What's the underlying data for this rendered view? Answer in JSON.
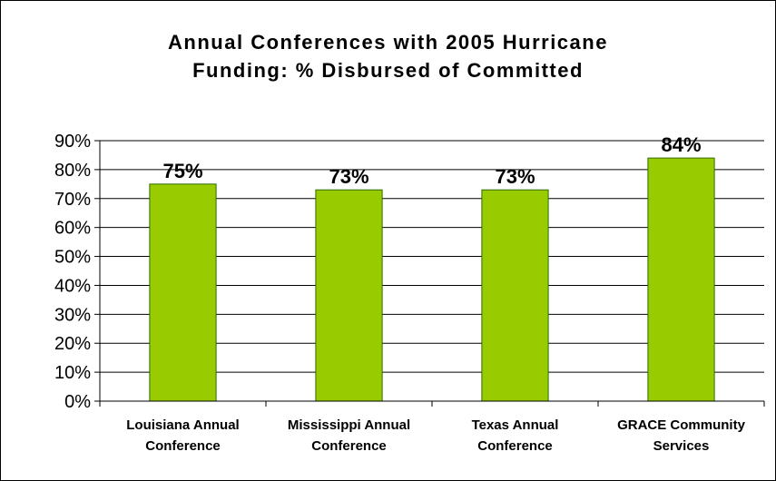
{
  "chart_data": {
    "type": "bar",
    "title_lines": [
      "Annual Conferences with 2005 Hurricane",
      "Funding:  % Disbursed of Committed"
    ],
    "categories": [
      [
        "Louisiana  Annual",
        "Conference"
      ],
      [
        "Mississippi Annual",
        "Conference"
      ],
      [
        "Texas Annual",
        "Conference"
      ],
      [
        "GRACE Community",
        "Services"
      ]
    ],
    "values": [
      75,
      73,
      73,
      84
    ],
    "data_labels": [
      "75%",
      "73%",
      "73%",
      "84%"
    ],
    "y_ticks": [
      0,
      10,
      20,
      30,
      40,
      50,
      60,
      70,
      80,
      90
    ],
    "y_tick_labels": [
      "0%",
      "10%",
      "20%",
      "30%",
      "40%",
      "50%",
      "60%",
      "70%",
      "80%",
      "90%"
    ],
    "ylim": [
      0,
      90
    ],
    "grid": true,
    "legend": "none",
    "xlabel": "",
    "ylabel": "",
    "colors": {
      "bar_fill": "#99CC00",
      "bar_stroke": "#2E6B00",
      "grid": "#000000",
      "axis": "#000000"
    }
  }
}
